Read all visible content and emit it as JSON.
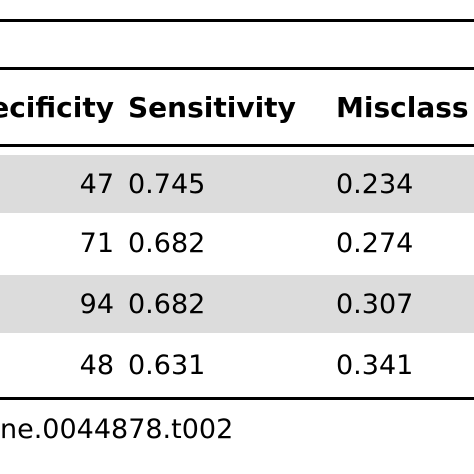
{
  "table": {
    "headers": {
      "specificity": "ecificity",
      "sensitivity": "Sensitivity",
      "misclassification": "Misclass"
    },
    "rows": [
      {
        "specificity": "47",
        "sensitivity": "0.745",
        "misclassification": "0.234"
      },
      {
        "specificity": "71",
        "sensitivity": "0.682",
        "misclassification": "0.274"
      },
      {
        "specificity": "94",
        "sensitivity": "0.682",
        "misclassification": "0.307"
      },
      {
        "specificity": "48",
        "sensitivity": "0.631",
        "misclassification": "0.341"
      }
    ]
  },
  "caption": "ne.0044878.t002",
  "colors": {
    "shaded_row": "#dcdcdc",
    "rule": "#000000",
    "text": "#000000"
  }
}
